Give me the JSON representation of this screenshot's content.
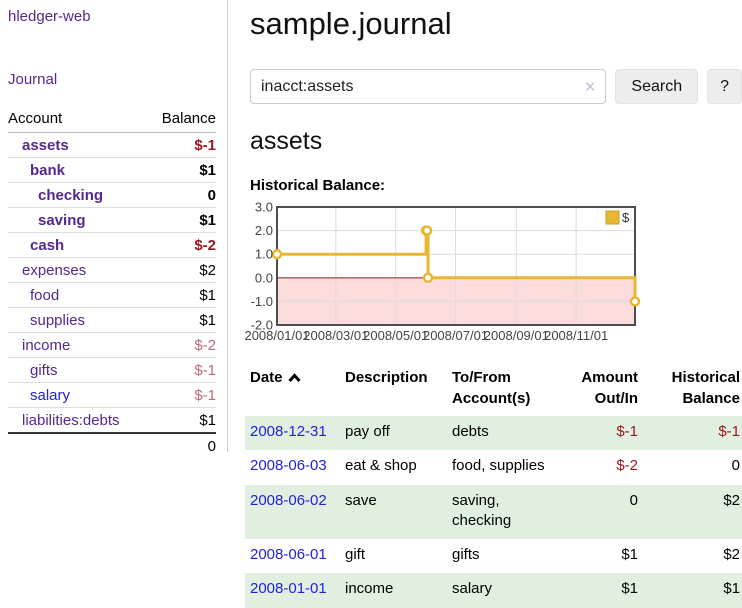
{
  "app": {
    "title": "hledger-web"
  },
  "sidebar": {
    "journal_link": "Journal",
    "header_account": "Account",
    "header_balance": "Balance",
    "accounts": [
      {
        "name": "assets",
        "depth": 1,
        "balance": "$-1",
        "in_query": true,
        "balance_class": "neg-strong",
        "link_class": ""
      },
      {
        "name": "bank",
        "depth": 2,
        "balance": "$1",
        "in_query": true,
        "balance_class": "",
        "link_class": ""
      },
      {
        "name": "checking",
        "depth": 3,
        "balance": "0",
        "in_query": true,
        "balance_class": "",
        "link_class": ""
      },
      {
        "name": "saving",
        "depth": 3,
        "balance": "$1",
        "in_query": true,
        "balance_class": "",
        "link_class": ""
      },
      {
        "name": "cash",
        "depth": 2,
        "balance": "$-2",
        "in_query": true,
        "balance_class": "neg-strong",
        "link_class": ""
      },
      {
        "name": "expenses",
        "depth": 1,
        "balance": "$2",
        "in_query": false,
        "balance_class": "",
        "link_class": ""
      },
      {
        "name": "food",
        "depth": 2,
        "balance": "$1",
        "in_query": false,
        "balance_class": "",
        "link_class": ""
      },
      {
        "name": "supplies",
        "depth": 2,
        "balance": "$1",
        "in_query": false,
        "balance_class": "",
        "link_class": ""
      },
      {
        "name": "income",
        "depth": 1,
        "balance": "$-2",
        "in_query": false,
        "balance_class": "neg-soft",
        "link_class": ""
      },
      {
        "name": "gifts",
        "depth": 2,
        "balance": "$-1",
        "in_query": false,
        "balance_class": "neg-soft",
        "link_class": ""
      },
      {
        "name": "salary",
        "depth": 2,
        "balance": "$-1",
        "in_query": false,
        "balance_class": "neg-soft",
        "link_class": "unvisited"
      },
      {
        "name": "liabilities:debts",
        "depth": 1,
        "balance": "$1",
        "in_query": false,
        "balance_class": "",
        "link_class": ""
      }
    ],
    "total": "0"
  },
  "header": {
    "title": "sample.journal"
  },
  "search": {
    "value": "inacct:assets",
    "clear_icon": "✕",
    "button_label": "Search",
    "help_label": "?"
  },
  "main": {
    "account_title": "assets",
    "chart_label": "Historical Balance:"
  },
  "chart_data": {
    "type": "line",
    "title": "Historical Balance:",
    "step": true,
    "ylim": [
      -2,
      3
    ],
    "ytick_values": [
      3,
      2,
      1,
      0,
      -1,
      -2
    ],
    "ytick_labels": [
      "3.0",
      "2.0",
      "1.0",
      "0.0",
      "-1.0",
      "-2.0"
    ],
    "x_domain_days": [
      0,
      365
    ],
    "xtick_days": [
      0,
      60,
      121,
      182,
      244,
      305
    ],
    "xtick_labels": [
      "2008/01/01",
      "2008/03/01",
      "2008/05/01",
      "2008/07/01",
      "2008/09/01",
      "2008/11/01"
    ],
    "series": [
      {
        "name": "$",
        "color": "#e8b730",
        "points": [
          {
            "date": "2008-01-01",
            "day": 0,
            "value": 1
          },
          {
            "date": "2008-06-01",
            "day": 152,
            "value": 2
          },
          {
            "date": "2008-06-02",
            "day": 153,
            "value": 2
          },
          {
            "date": "2008-06-03",
            "day": 154,
            "value": 0
          },
          {
            "date": "2008-12-31",
            "day": 365,
            "value": -1
          }
        ]
      }
    ],
    "legend": {
      "position": "top-right",
      "entries": [
        "$"
      ]
    },
    "colors": {
      "negative_region": "#fbdbdb",
      "zero_line": "#993333",
      "grid": "#dcdcdc",
      "border": "#4d4d4d",
      "axis_text": "#444444",
      "legend_border": "#c79d2a"
    }
  },
  "register": {
    "columns": [
      {
        "label": "Date",
        "sort_icon": "caret-up-icon"
      },
      {
        "label": "Description"
      },
      {
        "label": "To/From Account(s)"
      },
      {
        "label": "Amount Out/In"
      },
      {
        "label": "Historical Balance"
      }
    ],
    "rows": [
      {
        "date": "2008-12-31",
        "description": "pay off",
        "accounts": "debts",
        "amount": "$-1",
        "amount_negative": true,
        "balance": "$-1",
        "balance_negative": true
      },
      {
        "date": "2008-06-03",
        "description": "eat & shop",
        "accounts": "food, supplies",
        "amount": "$-2",
        "amount_negative": true,
        "balance": "0",
        "balance_negative": false
      },
      {
        "date": "2008-06-02",
        "description": "save",
        "accounts": "saving, checking",
        "amount": "0",
        "amount_negative": false,
        "balance": "$2",
        "balance_negative": false
      },
      {
        "date": "2008-06-01",
        "description": "gift",
        "accounts": "gifts",
        "amount": "$1",
        "amount_negative": false,
        "balance": "$2",
        "balance_negative": false
      },
      {
        "date": "2008-01-01",
        "description": "income",
        "accounts": "salary",
        "amount": "$1",
        "amount_negative": false,
        "balance": "$1",
        "balance_negative": false
      }
    ]
  }
}
